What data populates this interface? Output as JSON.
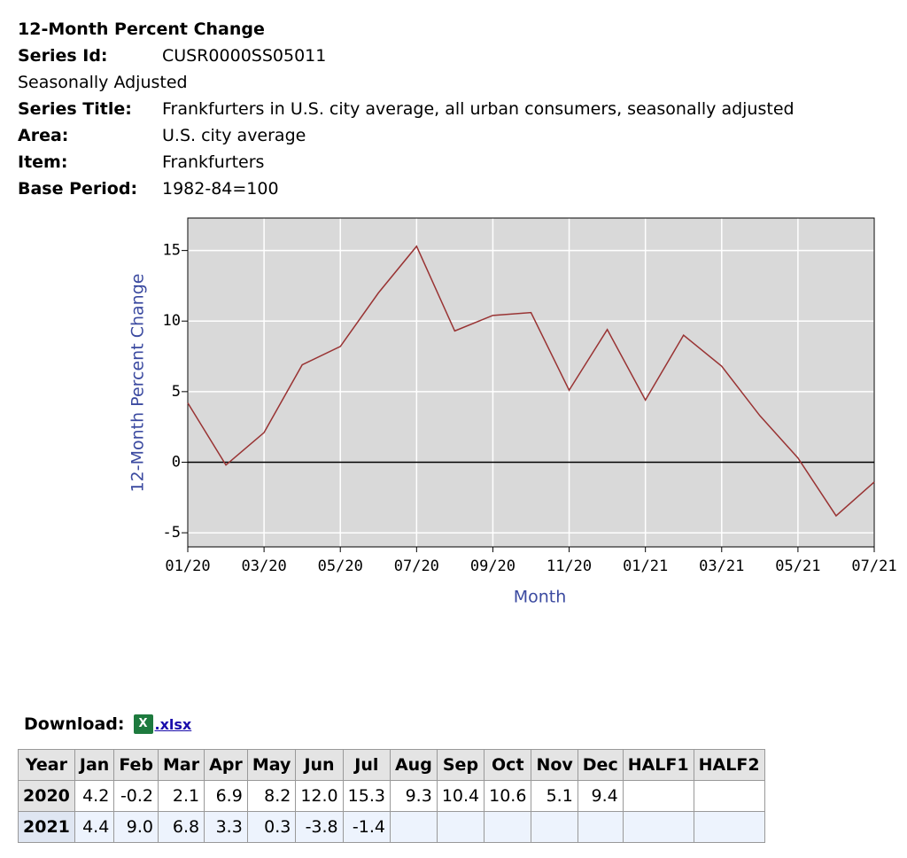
{
  "header": {
    "title": "12-Month Percent Change",
    "lines": [
      {
        "label": "Series Id:",
        "value": "CUSR0000SS05011"
      },
      {
        "text": "Seasonally Adjusted"
      },
      {
        "label": "Series Title:",
        "value": "Frankfurters in U.S. city average, all urban consumers, seasonally adjusted"
      },
      {
        "label": "Area:",
        "value": "U.S. city average"
      },
      {
        "label": "Item:",
        "value": "Frankfurters"
      },
      {
        "label": "Base Period:",
        "value": "1982-84=100"
      }
    ]
  },
  "chart_data": {
    "type": "line",
    "x_label": "Month",
    "y_label": "12-Month Percent Change",
    "categories": [
      "01/20",
      null,
      "03/20",
      null,
      "05/20",
      null,
      "07/20",
      null,
      "09/20",
      null,
      "11/20",
      null,
      "01/21",
      null,
      "03/21",
      null,
      "05/21",
      null,
      "07/21"
    ],
    "series": [
      {
        "name": "12-Month Percent Change",
        "color": "#993333",
        "values": [
          4.2,
          -0.2,
          2.1,
          6.9,
          8.2,
          12.0,
          15.3,
          9.3,
          10.4,
          10.6,
          5.1,
          9.4,
          4.4,
          9.0,
          6.8,
          3.3,
          0.3,
          -3.8,
          -1.4
        ]
      }
    ],
    "ylim": [
      -6,
      17.3
    ],
    "yticks": [
      -5,
      0,
      5,
      10,
      15
    ],
    "grid": true,
    "background": "#d9d9d9"
  },
  "download": {
    "label": "Download:",
    "link": ".xlsx"
  },
  "table": {
    "columns": [
      "Year",
      "Jan",
      "Feb",
      "Mar",
      "Apr",
      "May",
      "Jun",
      "Jul",
      "Aug",
      "Sep",
      "Oct",
      "Nov",
      "Dec",
      "HALF1",
      "HALF2"
    ],
    "rows": [
      [
        "2020",
        "4.2",
        "-0.2",
        "2.1",
        "6.9",
        "8.2",
        "12.0",
        "15.3",
        "9.3",
        "10.4",
        "10.6",
        "5.1",
        "9.4"
      ],
      [
        "2021",
        "4.4",
        "9.0",
        "6.8",
        "3.3",
        "0.3",
        "-3.8",
        "-1.4"
      ]
    ]
  }
}
